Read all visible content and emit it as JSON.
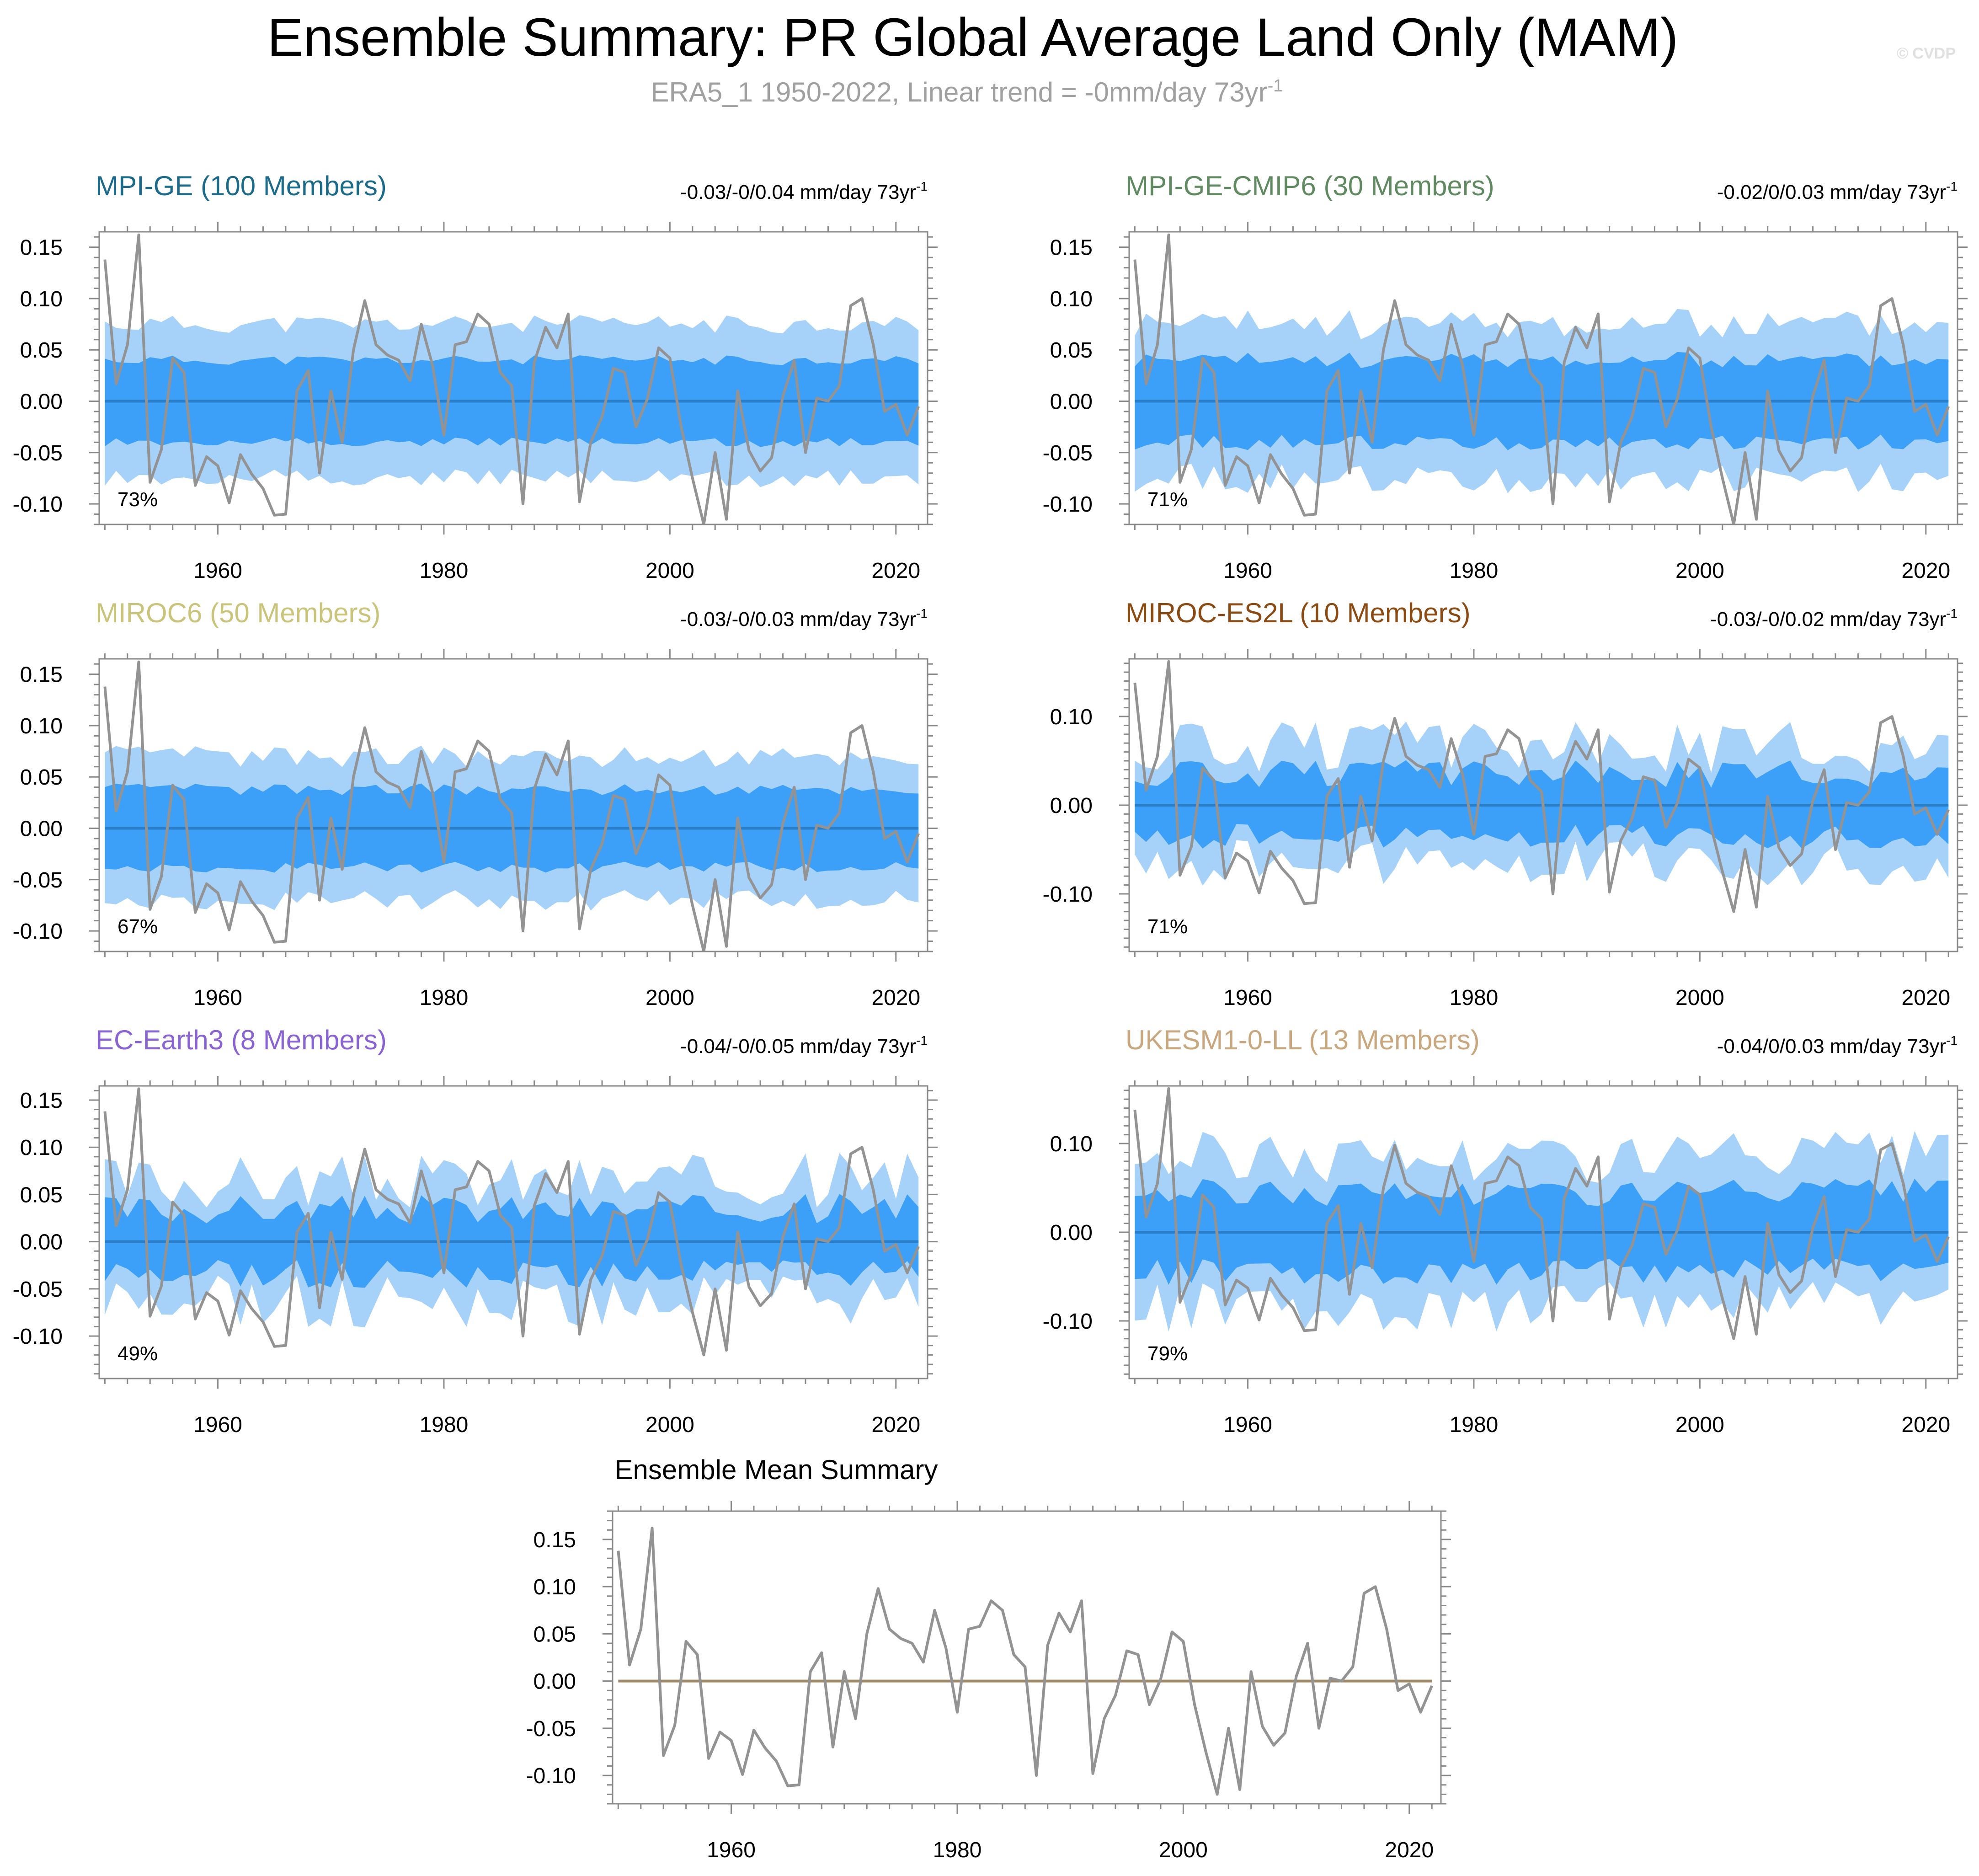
{
  "figure": {
    "title": "Ensemble Summary: PR Global Average Land Only (MAM)",
    "subtitle": "ERA5_1 1950-2022, Linear trend = -0mm/day 73yr",
    "subtitle_sup": "-1",
    "watermark": "© CVDP"
  },
  "colors": {
    "outer_band": "#a6d2fa",
    "inner_band": "#3ca0f8",
    "ens_mean": "#2a7ec8",
    "obs": "#939393",
    "mean_panel_zero": "#a08a6a",
    "axis": "#8a8a8a"
  },
  "chart_data": [
    {
      "type": "area",
      "name": "MPI-GE (100 Members)",
      "title_color": "#1b6a8a",
      "trend_label": "-0.03/-0/0.04 mm/day 73yr",
      "trend_sup": "-1",
      "pct_label": "73%",
      "ylim": [
        -0.12,
        0.165
      ],
      "yticks": [
        "0.15",
        "0.10",
        "0.05",
        "0.00",
        "-0.05",
        "-0.10"
      ],
      "ytick_values": [
        0.15,
        0.1,
        0.05,
        0.0,
        -0.05,
        -0.1
      ],
      "xticks": [
        "1960",
        "1980",
        "2000",
        "2020"
      ],
      "xtick_values": [
        1960,
        1980,
        2000,
        2020
      ],
      "xlim": [
        1949.5,
        2022.8
      ],
      "amp_outer": 0.075,
      "amp_inner": 0.04,
      "noise": 0.12,
      "seed": 11
    },
    {
      "type": "area",
      "name": "MPI-GE-CMIP6 (30 Members)",
      "title_color": "#5f8a60",
      "trend_label": "-0.02/0/0.03 mm/day 73yr",
      "trend_sup": "-1",
      "pct_label": "71%",
      "ylim": [
        -0.12,
        0.165
      ],
      "yticks": [
        "0.15",
        "0.10",
        "0.05",
        "0.00",
        "-0.05",
        "-0.10"
      ],
      "ytick_values": [
        0.15,
        0.1,
        0.05,
        0.0,
        -0.05,
        -0.1
      ],
      "xticks": [
        "1960",
        "1980",
        "2000",
        "2020"
      ],
      "xtick_values": [
        1960,
        1980,
        2000,
        2020
      ],
      "xlim": [
        1949.5,
        2022.8
      ],
      "amp_outer": 0.075,
      "amp_inner": 0.04,
      "noise": 0.2,
      "seed": 23
    },
    {
      "type": "area",
      "name": "MIROC6 (50 Members)",
      "title_color": "#c9c47a",
      "trend_label": "-0.03/-0/0.03 mm/day 73yr",
      "trend_sup": "-1",
      "pct_label": "67%",
      "ylim": [
        -0.12,
        0.165
      ],
      "yticks": [
        "0.15",
        "0.10",
        "0.05",
        "0.00",
        "-0.05",
        "-0.10"
      ],
      "ytick_values": [
        0.15,
        0.1,
        0.05,
        0.0,
        -0.05,
        -0.1
      ],
      "xticks": [
        "1960",
        "1980",
        "2000",
        "2020"
      ],
      "xtick_values": [
        1960,
        1980,
        2000,
        2020
      ],
      "xlim": [
        1949.5,
        2022.8
      ],
      "amp_outer": 0.07,
      "amp_inner": 0.038,
      "noise": 0.15,
      "seed": 37
    },
    {
      "type": "area",
      "name": "MIROC-ES2L (10 Members)",
      "title_color": "#8a4a12",
      "trend_label": "-0.03/-0/0.02 mm/day 73yr",
      "trend_sup": "-1",
      "pct_label": "71%",
      "ylim": [
        -0.165,
        0.165
      ],
      "yticks": [
        "0.10",
        "0.00",
        "-0.10"
      ],
      "ytick_values": [
        0.1,
        0.0,
        -0.1
      ],
      "xticks": [
        "1960",
        "1980",
        "2000",
        "2020"
      ],
      "xtick_values": [
        1960,
        1980,
        2000,
        2020
      ],
      "xlim": [
        1949.5,
        2022.8
      ],
      "amp_outer": 0.065,
      "amp_inner": 0.035,
      "noise": 0.45,
      "seed": 51
    },
    {
      "type": "area",
      "name": "EC-Earth3 (8 Members)",
      "title_color": "#8a63d2",
      "trend_label": "-0.04/-0/0.05 mm/day 73yr",
      "trend_sup": "-1",
      "pct_label": "49%",
      "ylim": [
        -0.145,
        0.165
      ],
      "yticks": [
        "0.15",
        "0.10",
        "0.05",
        "0.00",
        "-0.05",
        "-0.10"
      ],
      "ytick_values": [
        0.15,
        0.1,
        0.05,
        0.0,
        -0.05,
        -0.1
      ],
      "xticks": [
        "1960",
        "1980",
        "2000",
        "2020"
      ],
      "xtick_values": [
        1960,
        1980,
        2000,
        2020
      ],
      "xlim": [
        1949.5,
        2022.8
      ],
      "amp_outer": 0.065,
      "amp_inner": 0.035,
      "noise": 0.45,
      "seed": 67
    },
    {
      "type": "area",
      "name": "UKESM1-0-LL (13 Members)",
      "title_color": "#c8a67e",
      "trend_label": "-0.04/0/0.03 mm/day 73yr",
      "trend_sup": "-1",
      "pct_label": "79%",
      "ylim": [
        -0.165,
        0.165
      ],
      "yticks": [
        "0.10",
        "0.00",
        "-0.10"
      ],
      "ytick_values": [
        0.1,
        0.0,
        -0.1
      ],
      "xticks": [
        "1960",
        "1980",
        "2000",
        "2020"
      ],
      "xtick_values": [
        1960,
        1980,
        2000,
        2020
      ],
      "xlim": [
        1949.5,
        2022.8
      ],
      "amp_outer": 0.085,
      "amp_inner": 0.045,
      "noise": 0.35,
      "seed": 79
    },
    {
      "type": "line",
      "name": "Ensemble Mean Summary",
      "title_color": "#000000",
      "ylim": [
        -0.13,
        0.18
      ],
      "yticks": [
        "0.15",
        "0.10",
        "0.05",
        "0.00",
        "-0.05",
        "-0.10"
      ],
      "ytick_values": [
        0.15,
        0.1,
        0.05,
        0.0,
        -0.05,
        -0.1
      ],
      "xticks": [
        "1960",
        "1980",
        "2000",
        "2020"
      ],
      "xtick_values": [
        1960,
        1980,
        2000,
        2020
      ],
      "xlim": [
        1949.5,
        2022.8
      ]
    }
  ],
  "observed": {
    "name": "ERA5_1",
    "years": [
      1950,
      2022
    ],
    "values": [
      0.138,
      0.017,
      0.055,
      0.162,
      -0.079,
      -0.047,
      0.042,
      0.028,
      -0.082,
      -0.054,
      -0.063,
      -0.099,
      -0.052,
      -0.071,
      -0.085,
      -0.111,
      -0.11,
      0.01,
      0.03,
      -0.07,
      0.01,
      -0.04,
      0.05,
      0.098,
      0.055,
      0.045,
      0.04,
      0.02,
      0.075,
      0.035,
      -0.033,
      0.055,
      0.058,
      0.085,
      0.075,
      0.028,
      0.015,
      -0.1,
      0.038,
      0.072,
      0.052,
      0.085,
      -0.098,
      -0.04,
      -0.015,
      0.032,
      0.028,
      -0.025,
      0.002,
      0.052,
      0.042,
      -0.025,
      -0.075,
      -0.12,
      -0.05,
      -0.115,
      0.01,
      -0.048,
      -0.068,
      -0.055,
      0.005,
      0.04,
      -0.05,
      0.003,
      0.0,
      0.015,
      0.093,
      0.1,
      0.055,
      -0.01,
      -0.003,
      -0.033,
      -0.005
    ]
  }
}
